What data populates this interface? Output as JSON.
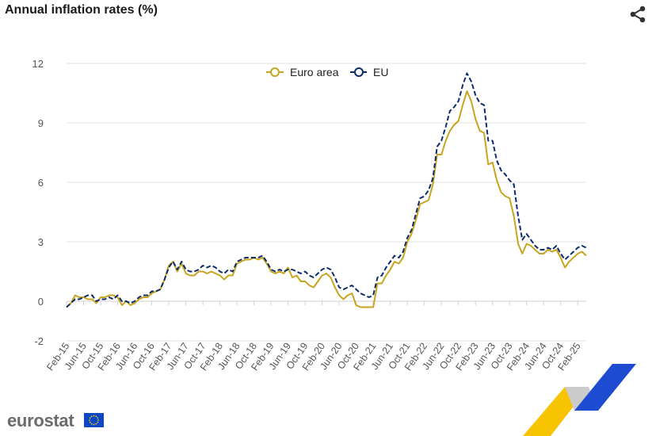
{
  "page": {
    "title": "Annual inflation rates (%)",
    "brand": "eurostat"
  },
  "icons": {
    "share": "share-icon",
    "flag": "eu-flag-icon"
  },
  "colors": {
    "euro_area": "#c8a51e",
    "eu": "#0e2c6c",
    "grid": "#e1e1e1",
    "axis": "#cfcfcf",
    "brand_yellow": "#f8c300",
    "brand_blue": "#1d4cd2",
    "brand_grey": "#cccccc"
  },
  "chart_data": {
    "type": "line",
    "xlabel": "",
    "ylabel": "",
    "ylim": [
      -2,
      12
    ],
    "yticks": [
      -2,
      0,
      3,
      6,
      9,
      12
    ],
    "grid": true,
    "legend_position": "top-center",
    "x_start": "Feb-15",
    "x_end": "Feb-25",
    "tick_labels": [
      "Feb-15",
      "Jun-15",
      "Oct-15",
      "Feb-16",
      "Jun-16",
      "Oct-16",
      "Feb-17",
      "Jun-17",
      "Oct-17",
      "Feb-18",
      "Jun-18",
      "Oct-18",
      "Feb-19",
      "Jun-19",
      "Oct-19",
      "Feb-20",
      "Jun-20",
      "Oct-20",
      "Feb-21",
      "Jun-21",
      "Oct-21",
      "Feb-22",
      "Jun-22",
      "Oct-22",
      "Feb-23",
      "Jun-23",
      "Oct-23",
      "Feb-24",
      "Jun-24",
      "Oct-24",
      "Feb-25"
    ],
    "series": [
      {
        "name": "Euro area",
        "values": [
          -0.3,
          -0.1,
          0.3,
          0.2,
          0.2,
          0.1,
          0.1,
          -0.1,
          0.2,
          0.2,
          0.3,
          0.3,
          0.2,
          -0.2,
          0.0,
          -0.2,
          -0.1,
          0.1,
          0.2,
          0.2,
          0.4,
          0.5,
          0.6,
          1.1,
          1.8,
          2.0,
          1.5,
          1.9,
          1.4,
          1.3,
          1.3,
          1.5,
          1.5,
          1.4,
          1.5,
          1.4,
          1.3,
          1.1,
          1.3,
          1.3,
          1.9,
          2.0,
          2.1,
          2.1,
          2.2,
          2.1,
          2.2,
          1.9,
          1.5,
          1.4,
          1.5,
          1.4,
          1.7,
          1.2,
          1.3,
          1.0,
          1.0,
          0.8,
          0.7,
          1.0,
          1.3,
          1.4,
          1.2,
          0.7,
          0.3,
          0.1,
          0.3,
          0.4,
          -0.2,
          -0.3,
          -0.3,
          -0.3,
          -0.3,
          0.9,
          0.9,
          1.3,
          1.6,
          2.0,
          1.9,
          2.2,
          3.0,
          3.4,
          4.1,
          4.9,
          5.0,
          5.1,
          5.9,
          7.4,
          7.4,
          8.1,
          8.6,
          8.9,
          9.1,
          9.9,
          10.6,
          10.1,
          9.2,
          8.6,
          8.5,
          6.9,
          7.0,
          6.1,
          5.5,
          5.3,
          5.2,
          4.3,
          2.9,
          2.4,
          2.9,
          2.8,
          2.6,
          2.4,
          2.4,
          2.6,
          2.5,
          2.6,
          2.2,
          1.7,
          2.0,
          2.2,
          2.4,
          2.5,
          2.3
        ],
        "color": "#c8a51e"
      },
      {
        "name": "EU",
        "values": [
          -0.3,
          -0.1,
          0.1,
          0.1,
          0.2,
          0.3,
          0.3,
          0.0,
          0.1,
          0.1,
          0.2,
          0.1,
          0.3,
          0.0,
          0.0,
          -0.1,
          0.0,
          0.2,
          0.3,
          0.3,
          0.5,
          0.5,
          0.6,
          1.1,
          1.7,
          2.0,
          1.6,
          2.0,
          1.6,
          1.5,
          1.5,
          1.6,
          1.8,
          1.7,
          1.8,
          1.7,
          1.5,
          1.4,
          1.6,
          1.5,
          2.0,
          2.1,
          2.2,
          2.2,
          2.2,
          2.2,
          2.3,
          2.0,
          1.6,
          1.5,
          1.6,
          1.5,
          1.6,
          1.6,
          1.5,
          1.4,
          1.5,
          1.3,
          1.2,
          1.4,
          1.6,
          1.7,
          1.6,
          1.2,
          0.7,
          0.6,
          0.7,
          0.8,
          0.6,
          0.4,
          0.3,
          0.2,
          0.3,
          1.2,
          1.3,
          1.7,
          2.0,
          2.3,
          2.2,
          2.5,
          3.2,
          3.6,
          4.4,
          5.2,
          5.3,
          5.6,
          6.2,
          7.8,
          8.1,
          8.8,
          9.6,
          9.8,
          10.1,
          10.9,
          11.5,
          11.1,
          10.4,
          10.0,
          9.9,
          8.1,
          8.1,
          7.1,
          6.6,
          6.4,
          6.1,
          5.9,
          4.3,
          3.1,
          3.4,
          3.1,
          2.8,
          2.6,
          2.6,
          2.7,
          2.6,
          2.8,
          2.4,
          2.1,
          2.3,
          2.5,
          2.7,
          2.8,
          2.7
        ]
      }
    ]
  }
}
